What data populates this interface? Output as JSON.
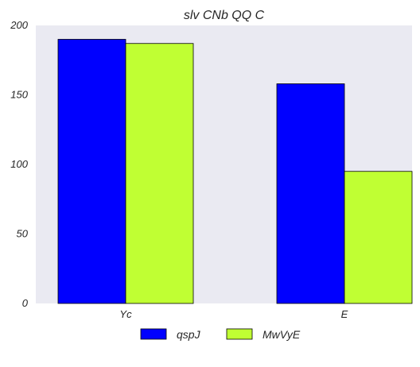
{
  "chart_data": {
    "type": "bar",
    "title": "slv CNb QQ C",
    "xlabel": "",
    "ylabel": "",
    "categories": [
      "Yc",
      "E"
    ],
    "ylim": [
      0,
      200
    ],
    "yticks": [
      0,
      50,
      100,
      150,
      200
    ],
    "grid": false,
    "legend_position": "bottom-center",
    "background_color": "#eaeaf2",
    "series": [
      {
        "name": "qspJ",
        "values": [
          190,
          158
        ],
        "color": "#0000ff"
      },
      {
        "name": "MwVyE",
        "values": [
          187,
          95
        ],
        "color": "#c0ff33"
      }
    ]
  }
}
